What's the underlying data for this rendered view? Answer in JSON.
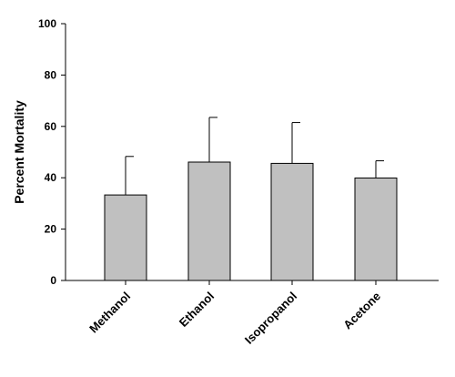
{
  "chart_data": {
    "type": "bar",
    "title": "",
    "xlabel": "",
    "ylabel": "Percent Mortality",
    "ylim": [
      0,
      100
    ],
    "yticks": [
      0,
      20,
      40,
      60,
      80,
      100
    ],
    "categories": [
      "Methanol",
      "Ethanol",
      "Isopropanol",
      "Acetone"
    ],
    "values": [
      33.3,
      46.1,
      45.6,
      39.9
    ],
    "error_upper": [
      15.0,
      17.4,
      15.9,
      6.7
    ],
    "bar_color": "#c0c0c0",
    "edge_color": "#000000",
    "grid": false,
    "legend": "none"
  }
}
